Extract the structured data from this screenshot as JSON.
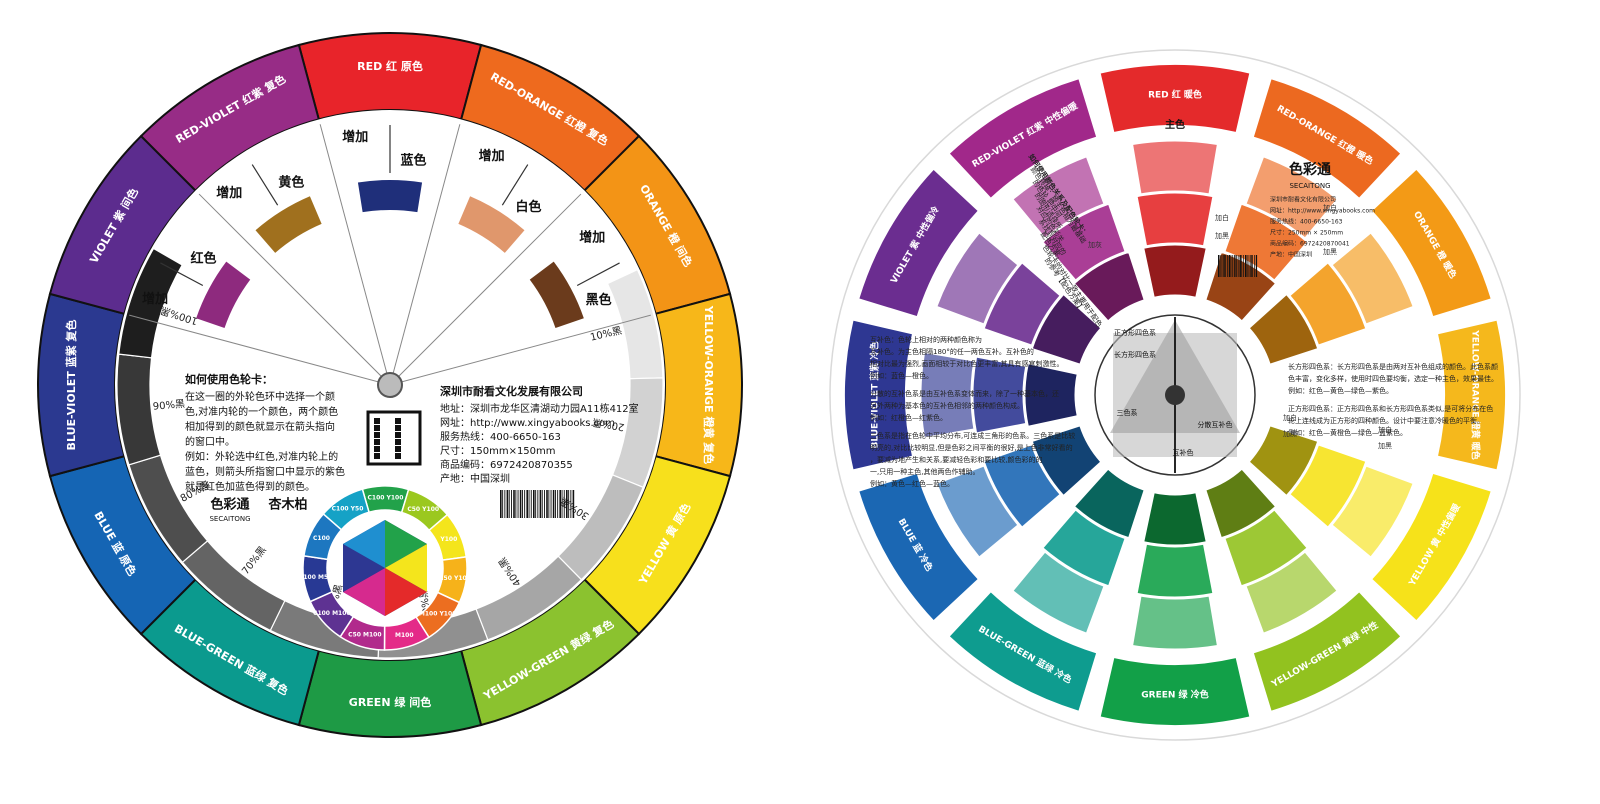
{
  "wheel1": {
    "outer_segments": [
      {
        "en": "RED",
        "zh": "红",
        "type": "原色",
        "color": "#E8242A"
      },
      {
        "en": "RED-ORANGE",
        "zh": "红橙",
        "type": "复色",
        "color": "#EE6A1E"
      },
      {
        "en": "ORANGE",
        "zh": "橙",
        "type": "间色",
        "color": "#F39416"
      },
      {
        "en": "YELLOW-ORANGE",
        "zh": "橙黄",
        "type": "复色",
        "color": "#F7B719"
      },
      {
        "en": "YELLOW",
        "zh": "黄",
        "type": "原色",
        "color": "#F7E01C"
      },
      {
        "en": "YELLOW-GREEN",
        "zh": "黄绿",
        "type": "复色",
        "color": "#8BC22F"
      },
      {
        "en": "GREEN",
        "zh": "绿",
        "type": "间色",
        "color": "#1E9A45"
      },
      {
        "en": "BLUE-GREEN",
        "zh": "蓝绿",
        "type": "复色",
        "color": "#0B9A8E"
      },
      {
        "en": "BLUE",
        "zh": "蓝",
        "type": "原色",
        "color": "#1565B4"
      },
      {
        "en": "BLUE-VIOLET",
        "zh": "蓝紫",
        "type": "复色",
        "color": "#2B3990"
      },
      {
        "en": "VIOLET",
        "zh": "紫",
        "type": "间色",
        "color": "#5C2C8E"
      },
      {
        "en": "RED-VIOLET",
        "zh": "红紫",
        "type": "复色",
        "color": "#972C86"
      }
    ],
    "gray_scale": [
      "10%黑",
      "20%黑",
      "30%黑",
      "40%黑",
      "50%黑",
      "60%黑",
      "70%黑",
      "80%黑",
      "90%黑",
      "100%黑"
    ],
    "window_labels": [
      {
        "add": "增加",
        "color": "红色"
      },
      {
        "add": "增加",
        "color": "黄色"
      },
      {
        "add": "增加",
        "color": "蓝色"
      },
      {
        "add": "增加",
        "color": "白色"
      },
      {
        "add": "增加",
        "color": "黑色"
      }
    ],
    "how_to": {
      "title": "如何使用色轮卡：",
      "lines": [
        "在这一圈的外轮色环中选择一个颜",
        "色,对准内轮的一个颜色，两个颜色",
        "相加得到的颜色就显示在箭头指向",
        "的窗口中。",
        "例如：外轮选中红色,对准内轮上的",
        "蓝色，则箭头所指窗口中显示的紫色",
        "就是红色加蓝色得到的颜色。"
      ]
    },
    "company": {
      "name": "深圳市耐看文化发展有限公司",
      "lines": [
        "地址：深圳市龙华区清湖动力园A11栋412室",
        "网址：http://www.xingyabooks.com",
        "服务热线：400-6650-163",
        "尺寸：150mm×150mm",
        "商品编码：6972420870355",
        "产地：中国深圳"
      ]
    },
    "logos": {
      "brand": "色彩通",
      "brand_en": "SECAITONG",
      "partner": "杏木柏"
    },
    "inner_ring": [
      "C100 Y100",
      "C50 Y100",
      "Y100",
      "M50 Y100",
      "M100 Y100",
      "M100",
      "C50 M100",
      "C100 M100",
      "C100 M50",
      "C100",
      "C100 Y50"
    ]
  },
  "wheel2": {
    "outer_segments": [
      {
        "en": "RED",
        "zh": "红",
        "type": "暖色",
        "color": "#E42A2B"
      },
      {
        "en": "RED-ORANGE",
        "zh": "红橙",
        "type": "暖色",
        "color": "#EC6920"
      },
      {
        "en": "ORANGE",
        "zh": "橙",
        "type": "暖色",
        "color": "#F39A16"
      },
      {
        "en": "YELLOW-ORANGE",
        "zh": "橙黄",
        "type": "暖色",
        "color": "#F5B81C"
      },
      {
        "en": "YELLOW",
        "zh": "黄",
        "type": "中性偏暖",
        "color": "#F6E21A"
      },
      {
        "en": "YELLOW-GREEN",
        "zh": "黄绿",
        "type": "中性",
        "color": "#92C21F"
      },
      {
        "en": "GREEN",
        "zh": "绿",
        "type": "冷色",
        "color": "#12A048"
      },
      {
        "en": "BLUE-GREEN",
        "zh": "蓝绿",
        "type": "冷色",
        "color": "#0E9C8F"
      },
      {
        "en": "BLUE",
        "zh": "蓝",
        "type": "冷色",
        "color": "#1B67B3"
      },
      {
        "en": "BLUE-VIOLET",
        "zh": "蓝紫",
        "type": "冷色",
        "color": "#2E3792"
      },
      {
        "en": "VIOLET",
        "zh": "紫",
        "type": "中性偏冷",
        "color": "#6B2D90"
      },
      {
        "en": "RED-VIOLET",
        "zh": "红紫",
        "type": "中性偏暖",
        "color": "#A1288A"
      }
    ],
    "top_label": "主色",
    "mix_labels": [
      "加白",
      "加黑",
      "加白",
      "加黑",
      "加灰",
      "加白",
      "加黑",
      "加白",
      "加黑"
    ],
    "intro": [
      "如何使用颜色关系及配色轮卡：",
      "颜色转换：旋主色相为最基础",
      "的色轮,把中间",
      "的图形选择所",
      "对应的色彩关",
      "系找到对应的",
      "配色方案。",
      "色轮卡的对比一致主要用于配色",
      "的参考【配色方案】"
    ],
    "notes": [
      {
        "title": "互补色：",
        "lines": [
          "互补色：色轮上相对的两种颜色称为",
          "互补色。为主色相隔180°的任一两色互补。互补色的",
          "相对比最为强烈,画面相较于对比色更丰富,其具有感官刺激性。",
          "例如：蓝色—橙色。"
        ]
      },
      {
        "title": "分散互补色：",
        "lines": [
          "分散的互补色系是由互补色系变体而来，除了一种基本色，还",
          "另外两种为基本色的互补色相邻的两种颜色构成。",
          "例如：红橙色—红紫色。"
        ]
      },
      {
        "title": "三色系：",
        "lines": [
          "三色系是指在色轮中平均分布,可连成三角形的色系。三色系是比较",
          "明亮的,对比比较明显,但是色彩之间平衡的很好,是上色非常好看的",
          "，要减为地产生和关系,要减轻色彩和要比较,颜色彩的的",
          "一,只用一种主色,其他两色作辅助。",
          "例如：黄色—红色—蓝色。"
        ]
      }
    ],
    "right_notes": [
      {
        "title": "长方形四色系：",
        "lines": [
          "长方形四色系：长方形四色系是由两对互补色组成的颜色。此色系颜",
          "色丰富，变化多样，使用时四色要均衡，选定一种主色，效果最佳。",
          "例如：红色—黄色—绿色—紫色。"
        ]
      },
      {
        "title": "正方形四色系：",
        "lines": [
          "正方形四色系：正方形四色系和长方形四色系类似,是可将分布在色",
          "轮上连线成为正方形的四种颜色。设计中要注意冷暖色的平衡。",
          "例如：红色—黄橙色—绿色—蓝紫色。"
        ]
      }
    ],
    "center_labels": [
      "正方形四色系",
      "长方形四色系",
      "三色系",
      "分散互补色",
      "互补色"
    ],
    "brand": {
      "name": "色彩通",
      "en": "SECAITONG",
      "lines": [
        "深圳市耐看文化有限公司",
        "网址：http://www.xingyabooks.com",
        "服务热线：400-6650-163",
        "尺寸：250mm × 250mm",
        "商品编码：6972420870041",
        "产地：中国深圳"
      ]
    }
  }
}
